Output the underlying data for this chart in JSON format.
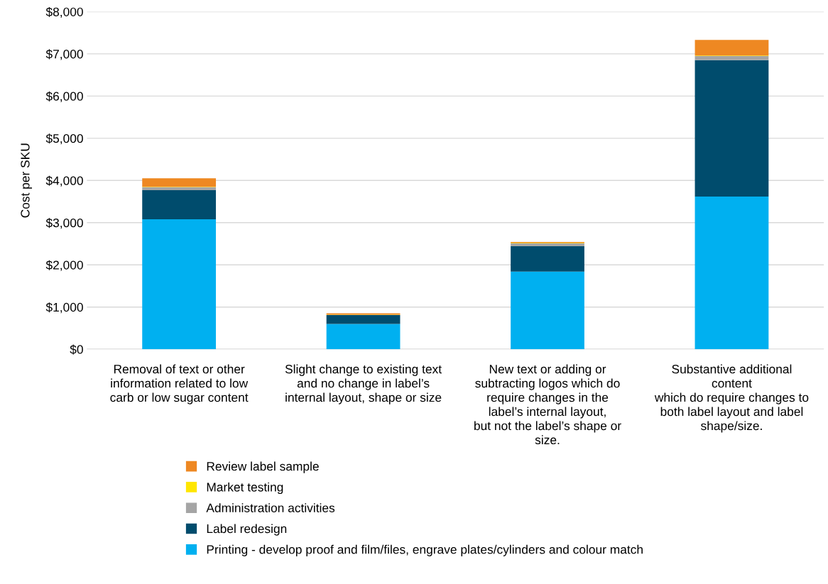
{
  "chart_data": {
    "type": "bar",
    "stacked": true,
    "ylabel": "Cost per SKU",
    "categories": [
      "Removal of text or other\ninformation related to low\ncarb or low sugar content",
      "Slight change to existing text\nand no change in label’s\ninternal layout, shape or size",
      "New text or adding or\nsubtracting logos which do\nrequire changes in the\nlabel’s internal layout,\nbut not the label’s shape or\nsize.",
      "Substantive additional\ncontent\nwhich do require changes to\nboth label layout and label\nshape/size."
    ],
    "series": [
      {
        "name": "Printing - develop proof and film/files, engrave plates/cylinders and colour match",
        "color": "#00b0f0",
        "values": [
          3080,
          600,
          1840,
          3620
        ]
      },
      {
        "name": "Label redesign",
        "color": "#004c6d",
        "values": [
          690,
          210,
          600,
          3230
        ]
      },
      {
        "name": "Administration activities",
        "color": "#a5a5a5",
        "values": [
          70,
          null,
          70,
          100
        ]
      },
      {
        "name": "Market testing",
        "color": "#ffe600",
        "values": [
          10,
          10,
          10,
          10
        ]
      },
      {
        "name": "Review label sample",
        "color": "#ee8822",
        "values": [
          200,
          30,
          20,
          370
        ]
      }
    ],
    "ylim": [
      0,
      8000
    ],
    "yticks": [
      {
        "value": 0,
        "label": "$0"
      },
      {
        "value": 1000,
        "label": "$1,000"
      },
      {
        "value": 2000,
        "label": "$2,000"
      },
      {
        "value": 3000,
        "label": "$3,000"
      },
      {
        "value": 4000,
        "label": "$4,000"
      },
      {
        "value": 5000,
        "label": "$5,000"
      },
      {
        "value": 6000,
        "label": "$6,000"
      },
      {
        "value": 7000,
        "label": "$7,000"
      },
      {
        "value": 8000,
        "label": "$8,000"
      }
    ],
    "grid": "y",
    "legend": "bottom"
  }
}
